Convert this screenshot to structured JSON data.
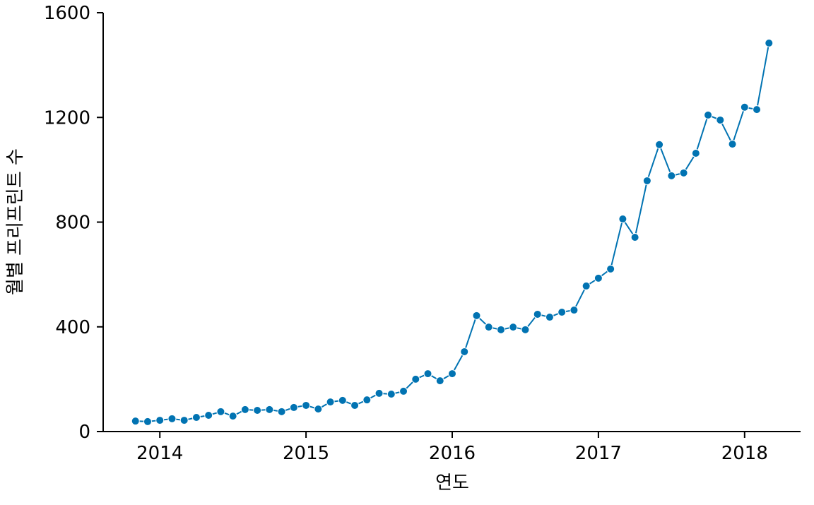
{
  "chart_data": {
    "type": "line",
    "xlabel": "연도",
    "ylabel": "월별 프리프린트 수",
    "x": [
      "2013-11",
      "2013-12",
      "2014-01",
      "2014-02",
      "2014-03",
      "2014-04",
      "2014-05",
      "2014-06",
      "2014-07",
      "2014-08",
      "2014-09",
      "2014-10",
      "2014-11",
      "2014-12",
      "2015-01",
      "2015-02",
      "2015-03",
      "2015-04",
      "2015-05",
      "2015-06",
      "2015-07",
      "2015-08",
      "2015-09",
      "2015-10",
      "2015-11",
      "2015-12",
      "2016-01",
      "2016-02",
      "2016-03",
      "2016-04",
      "2016-05",
      "2016-06",
      "2016-07",
      "2016-08",
      "2016-09",
      "2016-10",
      "2016-11",
      "2016-12",
      "2017-01",
      "2017-02",
      "2017-03",
      "2017-04",
      "2017-05",
      "2017-06",
      "2017-07",
      "2017-08",
      "2017-09",
      "2017-10",
      "2017-11",
      "2017-12",
      "2018-01",
      "2018-02",
      "2018-03"
    ],
    "series": [
      {
        "color": "#0173b2",
        "values": [
          40,
          38,
          43,
          49,
          43,
          54,
          62,
          76,
          59,
          84,
          81,
          84,
          76,
          92,
          100,
          86,
          113,
          119,
          100,
          121,
          146,
          143,
          154,
          200,
          221,
          194,
          221,
          305,
          443,
          399,
          389,
          399,
          389,
          448,
          437,
          456,
          464,
          556,
          586,
          621,
          812,
          742,
          958,
          1096,
          977,
          988,
          1063,
          1209,
          1190,
          1098,
          1239,
          1230,
          1484
        ]
      }
    ],
    "xlim": [
      "2013-08",
      "2018-06"
    ],
    "xticks": [
      2014,
      2015,
      2016,
      2017,
      2018
    ],
    "ylim": [
      0,
      1600
    ],
    "yticks": [
      0,
      400,
      800,
      1200,
      1600
    ]
  }
}
